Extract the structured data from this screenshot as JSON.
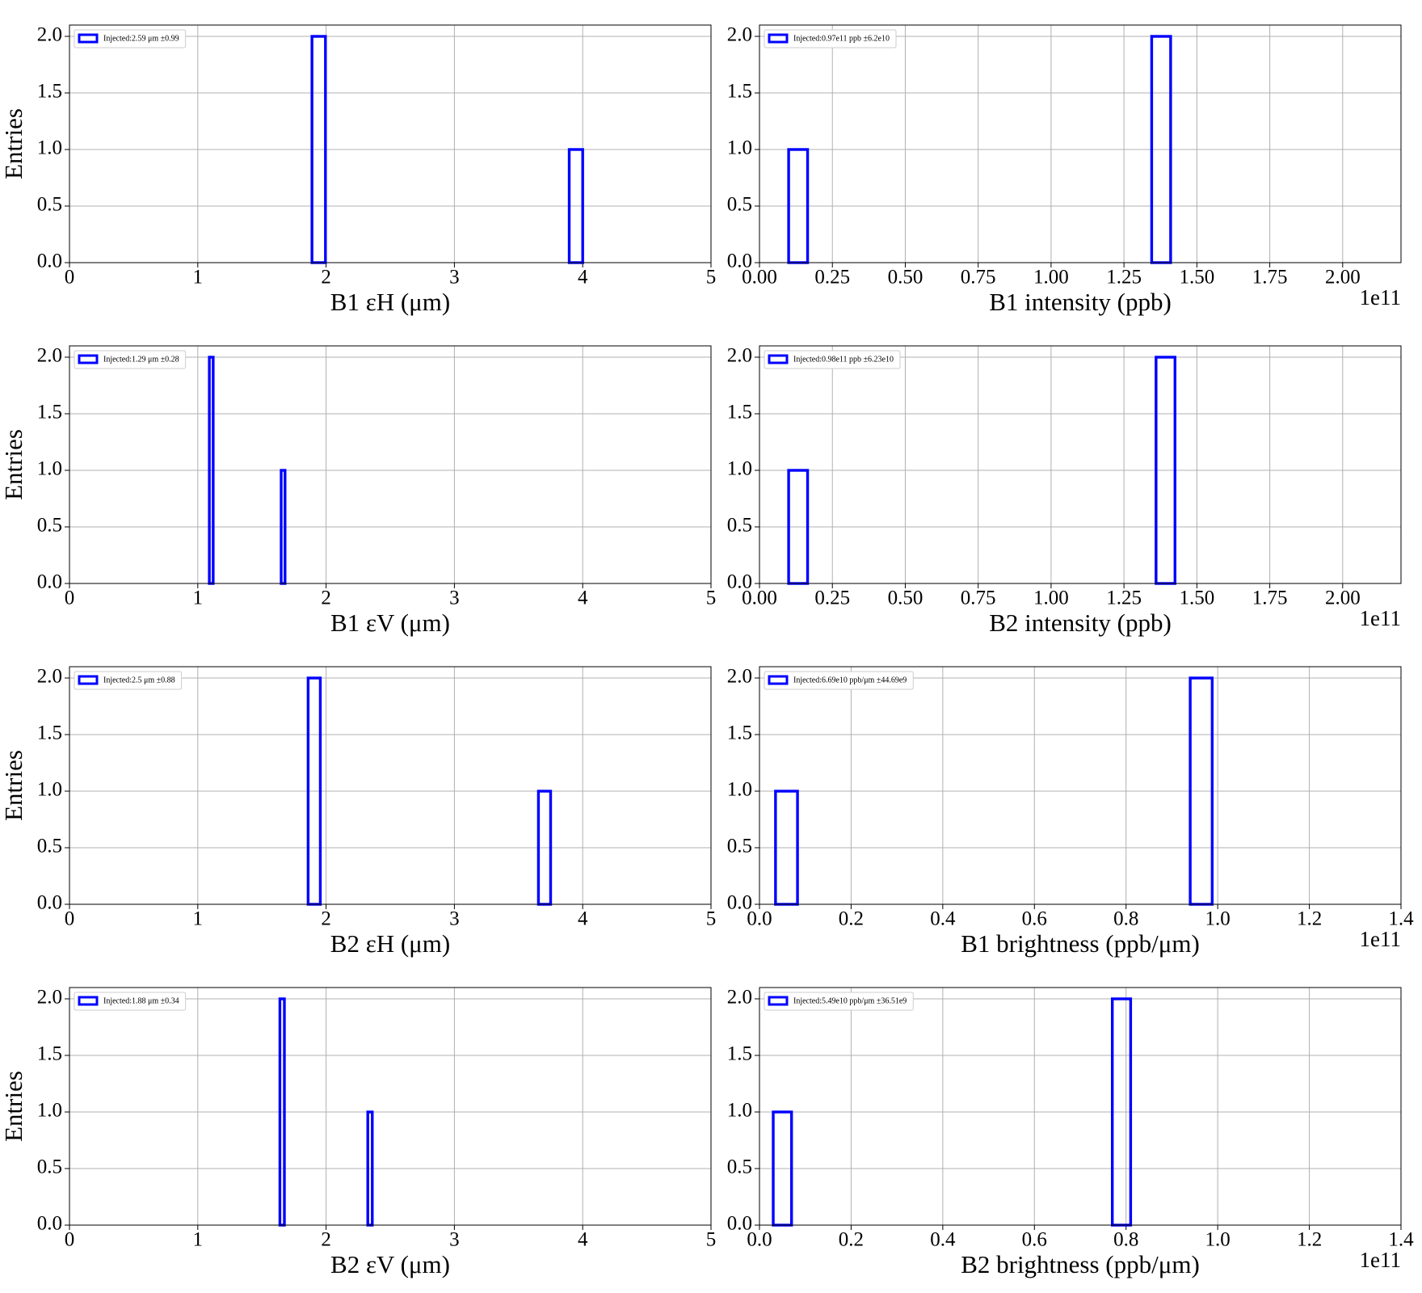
{
  "chart_data": [
    {
      "type": "histogram",
      "xlabel": "B1 εH (μm)",
      "ylabel": "Entries",
      "bins": [
        1.89,
        1.995,
        3.895,
        4.0
      ],
      "series": [
        {
          "name": "Injected:2.59 μm ±0.99",
          "color": "#0000ff",
          "values": [
            2,
            0,
            1
          ]
        }
      ],
      "xlim": [
        0,
        5
      ],
      "xticks": [
        0,
        1,
        2,
        3,
        4,
        5
      ],
      "ylim": [
        0,
        2.1
      ],
      "yticks": [
        {
          "value": 0,
          "label": "0.0"
        },
        0.5,
        {
          "value": 1,
          "label": "1.0"
        },
        1.5,
        {
          "value": 2,
          "label": "2.0"
        }
      ],
      "grid": true
    },
    {
      "type": "histogram",
      "xlabel": "B1 intensity (ppb)",
      "offset_label": "1e11",
      "bins": [
        0.1,
        0.165,
        1.345,
        1.41
      ],
      "series": [
        {
          "name": "Injected:0.97e11 ppb ±6.2e10",
          "color": "#0000ff",
          "values": [
            1,
            0,
            2
          ]
        }
      ],
      "xlim": [
        0,
        2.2
      ],
      "xticks": [
        {
          "value": 0,
          "label": "0.00"
        },
        0.25,
        {
          "value": 0.5,
          "label": "0.50"
        },
        0.75,
        {
          "value": 1,
          "label": "1.00"
        },
        1.25,
        {
          "value": 1.5,
          "label": "1.50"
        },
        1.75,
        {
          "value": 2,
          "label": "2.00"
        }
      ],
      "ylim": [
        0,
        2.1
      ],
      "yticks": [
        {
          "value": 0,
          "label": "0.0"
        },
        0.5,
        {
          "value": 1,
          "label": "1.0"
        },
        1.5,
        {
          "value": 2,
          "label": "2.0"
        }
      ],
      "grid": true
    },
    {
      "type": "histogram",
      "xlabel": "B1 εV (μm)",
      "ylabel": "Entries",
      "bins": [
        1.09,
        1.12,
        1.65,
        1.68
      ],
      "series": [
        {
          "name": "Injected:1.29 μm ±0.28",
          "color": "#0000ff",
          "values": [
            2,
            0,
            1
          ]
        }
      ],
      "xlim": [
        0,
        5
      ],
      "xticks": [
        0,
        1,
        2,
        3,
        4,
        5
      ],
      "ylim": [
        0,
        2.1
      ],
      "yticks": [
        {
          "value": 0,
          "label": "0.0"
        },
        0.5,
        {
          "value": 1,
          "label": "1.0"
        },
        1.5,
        {
          "value": 2,
          "label": "2.0"
        }
      ],
      "grid": true
    },
    {
      "type": "histogram",
      "xlabel": "B2 intensity (ppb)",
      "offset_label": "1e11",
      "bins": [
        0.1,
        0.165,
        1.36,
        1.425
      ],
      "series": [
        {
          "name": "Injected:0.98e11 ppb ±6.23e10",
          "color": "#0000ff",
          "values": [
            1,
            0,
            2
          ]
        }
      ],
      "xlim": [
        0,
        2.2
      ],
      "xticks": [
        {
          "value": 0,
          "label": "0.00"
        },
        0.25,
        {
          "value": 0.5,
          "label": "0.50"
        },
        0.75,
        {
          "value": 1,
          "label": "1.00"
        },
        1.25,
        {
          "value": 1.5,
          "label": "1.50"
        },
        1.75,
        {
          "value": 2,
          "label": "2.00"
        }
      ],
      "ylim": [
        0,
        2.1
      ],
      "yticks": [
        {
          "value": 0,
          "label": "0.0"
        },
        0.5,
        {
          "value": 1,
          "label": "1.0"
        },
        1.5,
        {
          "value": 2,
          "label": "2.0"
        }
      ],
      "grid": true
    },
    {
      "type": "histogram",
      "xlabel": "B2 εH (μm)",
      "ylabel": "Entries",
      "bins": [
        1.86,
        1.955,
        3.655,
        3.75
      ],
      "series": [
        {
          "name": "Injected:2.5 μm ±0.88",
          "color": "#0000ff",
          "values": [
            2,
            0,
            1
          ]
        }
      ],
      "xlim": [
        0,
        5
      ],
      "xticks": [
        0,
        1,
        2,
        3,
        4,
        5
      ],
      "ylim": [
        0,
        2.1
      ],
      "yticks": [
        {
          "value": 0,
          "label": "0.0"
        },
        0.5,
        {
          "value": 1,
          "label": "1.0"
        },
        1.5,
        {
          "value": 2,
          "label": "2.0"
        }
      ],
      "grid": true
    },
    {
      "type": "histogram",
      "xlabel": "B1 brightness (ppb/μm)",
      "offset_label": "1e11",
      "bins": [
        0.035,
        0.083,
        0.94,
        0.988
      ],
      "series": [
        {
          "name": "Injected:6.69e10 ppb/μm ±44.69e9",
          "color": "#0000ff",
          "values": [
            1,
            0,
            2
          ]
        }
      ],
      "xlim": [
        0,
        1.4
      ],
      "xticks": [
        {
          "value": 0,
          "label": "0.0"
        },
        0.2,
        0.4,
        0.6,
        0.8,
        {
          "value": 1,
          "label": "1.0"
        },
        1.2,
        1.4
      ],
      "ylim": [
        0,
        2.1
      ],
      "yticks": [
        {
          "value": 0,
          "label": "0.0"
        },
        0.5,
        {
          "value": 1,
          "label": "1.0"
        },
        1.5,
        {
          "value": 2,
          "label": "2.0"
        }
      ],
      "grid": true
    },
    {
      "type": "histogram",
      "xlabel": "B2 εV (μm)",
      "ylabel": "Entries",
      "bins": [
        1.64,
        1.675,
        2.325,
        2.36
      ],
      "series": [
        {
          "name": "Injected:1.88 μm ±0.34",
          "color": "#0000ff",
          "values": [
            2,
            0,
            1
          ]
        }
      ],
      "xlim": [
        0,
        5
      ],
      "xticks": [
        0,
        1,
        2,
        3,
        4,
        5
      ],
      "ylim": [
        0,
        2.1
      ],
      "yticks": [
        {
          "value": 0,
          "label": "0.0"
        },
        0.5,
        {
          "value": 1,
          "label": "1.0"
        },
        1.5,
        {
          "value": 2,
          "label": "2.0"
        }
      ],
      "grid": true
    },
    {
      "type": "histogram",
      "xlabel": "B2 brightness (ppb/μm)",
      "offset_label": "1e11",
      "bins": [
        0.03,
        0.07,
        0.77,
        0.81
      ],
      "series": [
        {
          "name": "Injected:5.49e10 ppb/μm ±36.51e9",
          "color": "#0000ff",
          "values": [
            1,
            0,
            2
          ]
        }
      ],
      "xlim": [
        0,
        1.4
      ],
      "xticks": [
        {
          "value": 0,
          "label": "0.0"
        },
        0.2,
        0.4,
        0.6,
        0.8,
        {
          "value": 1,
          "label": "1.0"
        },
        1.2,
        1.4
      ],
      "ylim": [
        0,
        2.1
      ],
      "yticks": [
        {
          "value": 0,
          "label": "0.0"
        },
        0.5,
        {
          "value": 1,
          "label": "1.0"
        },
        1.5,
        {
          "value": 2,
          "label": "2.0"
        }
      ],
      "grid": true
    }
  ]
}
